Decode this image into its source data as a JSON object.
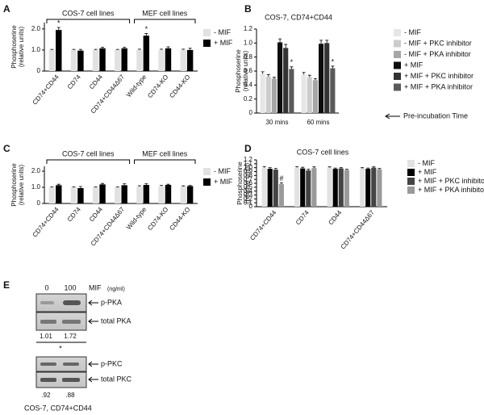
{
  "chart_data": [
    {
      "type": "bar",
      "panel": "A",
      "ylabel": [
        "Phosphoserine",
        "(relative units)"
      ],
      "categories": [
        "CD74+CD44",
        "CD74",
        "CD44",
        "CD74+CD44Δ67",
        "Wild-type",
        "CD74-KO",
        "CD44-KO"
      ],
      "series": [
        {
          "name": "- MIF",
          "color": "#e2e2e2",
          "values": [
            1,
            1,
            1,
            1,
            1,
            1,
            1
          ],
          "errors": [
            0.03,
            0.03,
            0.03,
            0.03,
            0.04,
            0.04,
            0.04
          ]
        },
        {
          "name": "+ MIF",
          "color": "#000000",
          "values": [
            1.95,
            0.97,
            1.08,
            1.08,
            1.68,
            1.08,
            1.0
          ],
          "errors": [
            0.12,
            0.06,
            0.05,
            0.05,
            0.1,
            0.07,
            0.08
          ]
        }
      ],
      "ylim": [
        0,
        2.3
      ],
      "yticks": [
        0,
        {
          "value": 1,
          "label": "1.0"
        },
        {
          "value": 2,
          "label": "2.0"
        }
      ],
      "group_labels": [
        "COS-7 cell lines",
        "MEF cell lines"
      ],
      "annotations": [
        "*",
        "*"
      ]
    },
    {
      "type": "bar",
      "panel": "B",
      "title": "COS-7, CD74+CD44",
      "ylabel": [
        "Phosphoserine",
        "(relative units)"
      ],
      "categories": [
        "30 mins",
        "60 mins"
      ],
      "series": [
        {
          "name": "- MIF",
          "color": "#e6e6e6",
          "values": [
            0.56,
            0.55
          ],
          "errors": [
            0.03,
            0.03
          ]
        },
        {
          "name": "- MIF + PKC inhibitor",
          "color": "#cccccc",
          "values": [
            0.52,
            0.51
          ],
          "errors": [
            0.03,
            0.03
          ]
        },
        {
          "name": "- MIF + PKA inhibitor",
          "color": "#a6a6a6",
          "values": [
            0.49,
            0.47
          ],
          "errors": [
            0.02,
            0.02
          ]
        },
        {
          "name": "+ MIF",
          "color": "#0d0d0d",
          "values": [
            1.01,
            0.99
          ],
          "errors": [
            0.05,
            0.05
          ]
        },
        {
          "name": "+ MIF + PKC inhibitor",
          "color": "#333333",
          "values": [
            0.93,
            1.0
          ],
          "errors": [
            0.05,
            0.04
          ]
        },
        {
          "name": "+ MIF + PKA inhibitor",
          "color": "#5a5a5a",
          "values": [
            0.63,
            0.64
          ],
          "errors": [
            0.03,
            0.03
          ]
        }
      ],
      "ylim": [
        0,
        1.2
      ],
      "yticks": [
        0,
        0.2,
        0.4,
        0.6,
        0.8,
        {
          "value": 1,
          "label": "1.0"
        },
        1.2
      ],
      "annotations": [
        "*",
        "*"
      ],
      "xlabel": "Pre-incubation Time"
    },
    {
      "type": "bar",
      "panel": "C",
      "ylabel": [
        "Phosphoserine",
        "(relative units)"
      ],
      "categories": [
        "CD74+CD44",
        "CD74",
        "CD44",
        "CD74+CD44Δ67",
        "Wild-type",
        "CD74-KO",
        "CD44-KO"
      ],
      "series": [
        {
          "name": "- MIF",
          "color": "#e2e2e2",
          "values": [
            1,
            1,
            1,
            1,
            1.05,
            1.07,
            1.05
          ],
          "errors": [
            0.03,
            0.03,
            0.03,
            0.03,
            0.05,
            0.05,
            0.04
          ]
        },
        {
          "name": "+ MIF",
          "color": "#000000",
          "values": [
            1.13,
            0.95,
            1.18,
            1.13,
            1.15,
            1.15,
            1.08
          ],
          "errors": [
            0.06,
            0.1,
            0.06,
            0.09,
            0.07,
            0.04,
            0.04
          ]
        }
      ],
      "ylim": [
        0,
        2.3
      ],
      "yticks": [
        0,
        {
          "value": 1,
          "label": "1.0"
        },
        {
          "value": 2,
          "label": "2.0"
        }
      ],
      "group_labels": [
        "COS-7 cell lines",
        "MEF cell lines"
      ]
    },
    {
      "type": "bar",
      "panel": "D",
      "title": "COS-7 cell lines",
      "ylabel": [
        "Phosphoserine",
        "(relative units)"
      ],
      "categories": [
        "CD74+CD44",
        "CD74",
        "CD44",
        "CD74+CD44Δ67"
      ],
      "series": [
        {
          "name": "- MIF",
          "color": "#e2e2e2",
          "values": [
            1.0,
            1.0,
            1.0,
            0.98
          ],
          "errors": [
            0.03,
            0.03,
            0.02,
            0.02
          ]
        },
        {
          "name": "+ MIF",
          "color": "#000000",
          "values": [
            0.97,
            0.98,
            0.97,
            0.97
          ],
          "errors": [
            0.03,
            0.03,
            0.02,
            0.02
          ]
        },
        {
          "name": "+ MIF + PKC inhibitor",
          "color": "#444444",
          "values": [
            0.95,
            0.93,
            0.98,
            1.0
          ],
          "errors": [
            0.03,
            0.03,
            0.02,
            0.02
          ]
        },
        {
          "name": "+ MIF + PKA inhibitor",
          "color": "#9a9a9a",
          "values": [
            0.58,
            0.99,
            0.94,
            0.96
          ],
          "errors": [
            0.03,
            0.03,
            0.02,
            0.02
          ]
        }
      ],
      "ylim": [
        0,
        1.2
      ],
      "yticks": [
        0,
        0.1,
        0.2,
        0.3,
        0.4,
        0.5,
        0.6,
        0.7,
        0.8,
        0.9,
        {
          "value": 1,
          "label": "1.0"
        },
        1.1,
        1.2
      ],
      "annotations": [
        "#"
      ]
    }
  ],
  "panel_e": {
    "panel": "E",
    "lanes": [
      "0",
      "100"
    ],
    "treatment": "MIF",
    "unit": "(ng/ml)",
    "pka": {
      "bands": [
        "p-PKA",
        "total PKA"
      ],
      "ratios": [
        "1.01",
        "1.72"
      ],
      "significance": "*"
    },
    "pkc": {
      "bands": [
        "p-PKC",
        "total PKC"
      ],
      "ratios": [
        ".92",
        ".88"
      ]
    },
    "caption": "COS-7, CD74+CD44"
  }
}
